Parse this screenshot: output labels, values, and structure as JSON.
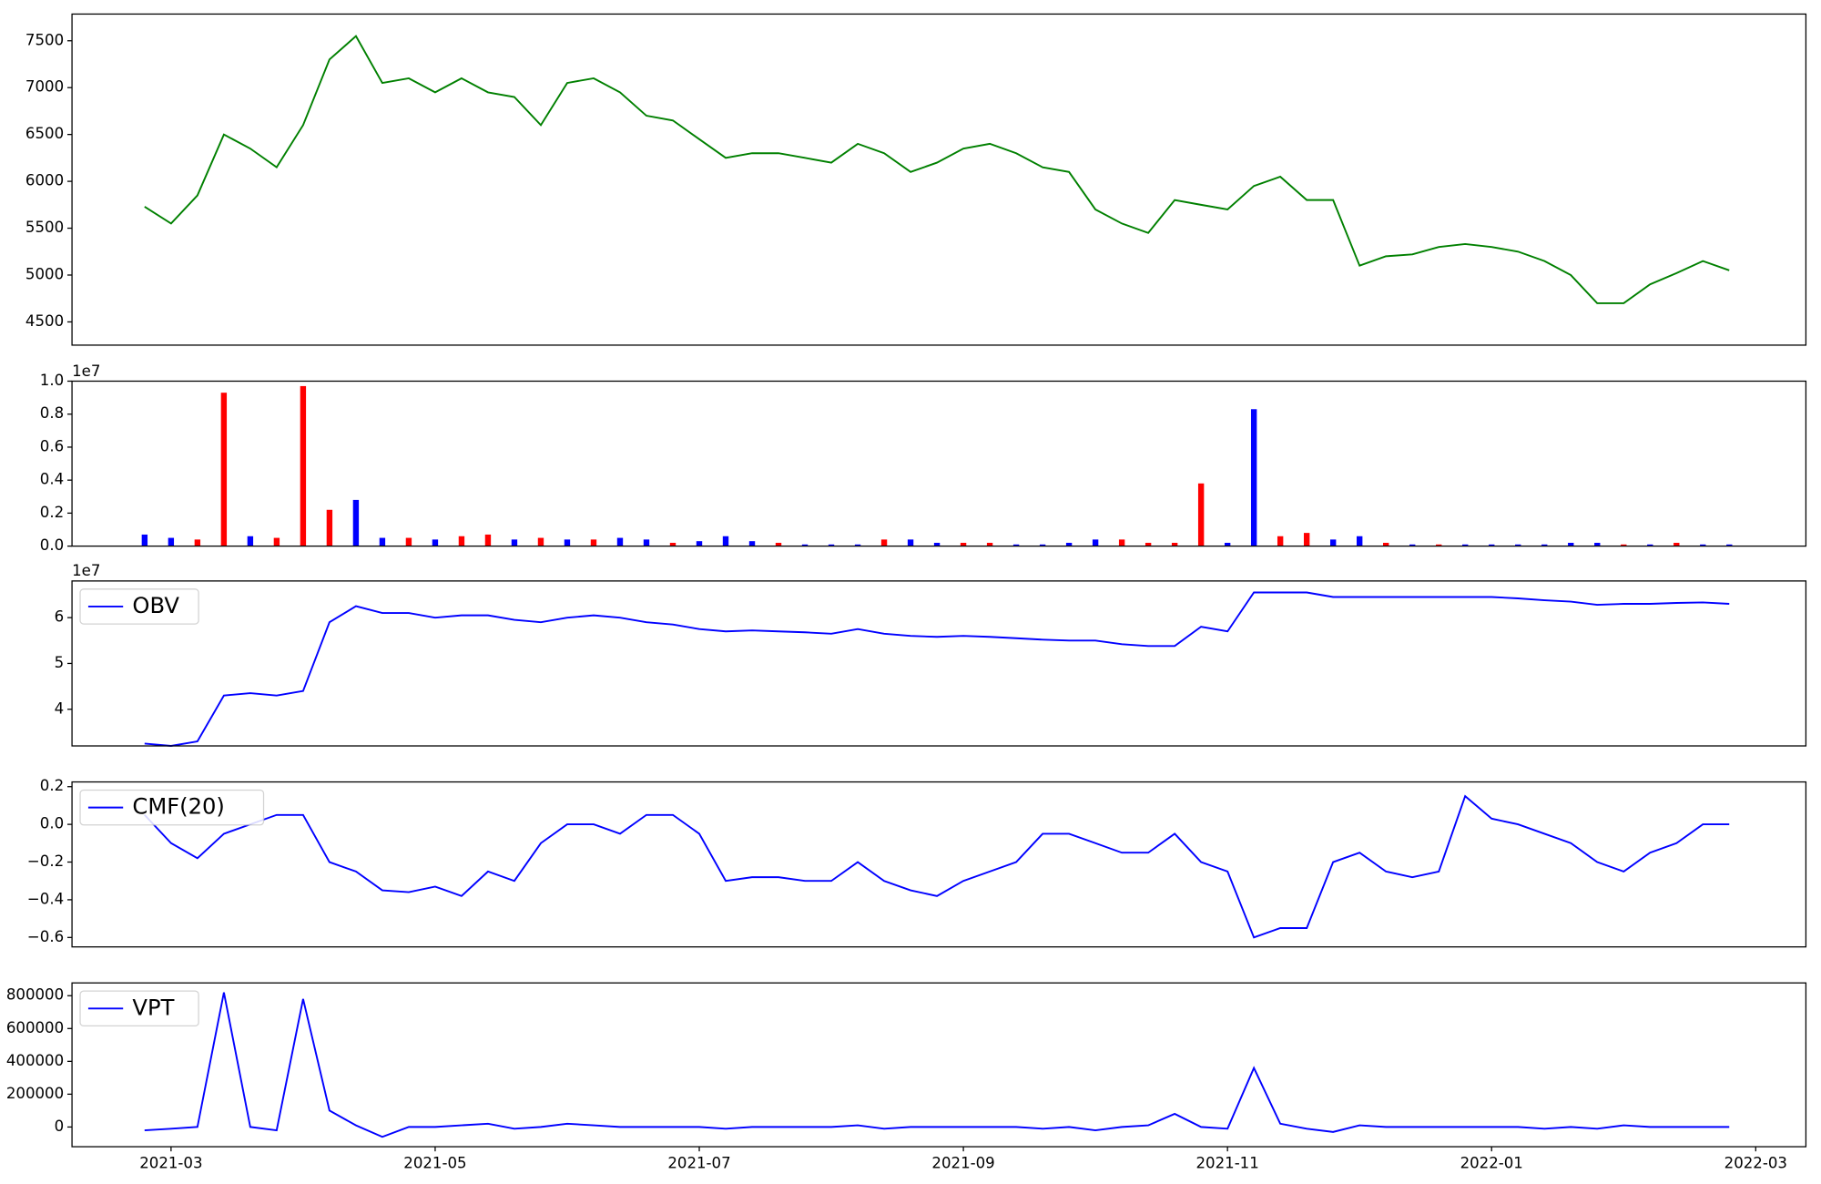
{
  "chart_data": [
    {
      "type": "line",
      "x": [
        2.8,
        3,
        3.2,
        3.4,
        3.6,
        3.8,
        4,
        4.2,
        4.4,
        4.6,
        4.8,
        5,
        5.2,
        5.4,
        5.6,
        5.8,
        6,
        6.2,
        6.4,
        6.6,
        6.8,
        7,
        7.2,
        7.4,
        7.6,
        7.8,
        8,
        8.2,
        8.4,
        8.6,
        8.8,
        9,
        9.2,
        9.4,
        9.6,
        9.8,
        10,
        10.2,
        10.4,
        10.6,
        10.8,
        11,
        11.2,
        11.4,
        11.6,
        11.8,
        12,
        12.2,
        12.4,
        12.6,
        12.8,
        13,
        13.2,
        13.4,
        13.6,
        13.8,
        14,
        14.2,
        14.4,
        14.6,
        14.8
      ],
      "xlim": [
        2.25,
        15.38
      ],
      "ylim": [
        4252,
        7785
      ],
      "yticks": [
        4500,
        5000,
        5500,
        6000,
        6500,
        7000,
        7500
      ],
      "series": [
        {
          "color": "green",
          "values": [
            5730,
            5550,
            5850,
            6500,
            6350,
            6150,
            6600,
            7300,
            7550,
            7050,
            7100,
            6950,
            7100,
            6950,
            6900,
            6600,
            7050,
            7100,
            6950,
            6700,
            6650,
            6450,
            6250,
            6300,
            6300,
            6250,
            6200,
            6400,
            6300,
            6100,
            6200,
            6350,
            6400,
            6300,
            6150,
            6100,
            5700,
            5550,
            5450,
            5800,
            5750,
            5700,
            5950,
            6050,
            5800,
            5800,
            5100,
            5200,
            5220,
            5300,
            5330,
            5300,
            5250,
            5150,
            5000,
            4700,
            4700,
            4900,
            5020,
            5150,
            5050
          ]
        }
      ]
    },
    {
      "type": "bar",
      "x": [
        2.8,
        3,
        3.2,
        3.4,
        3.6,
        3.8,
        4,
        4.2,
        4.4,
        4.6,
        4.8,
        5,
        5.2,
        5.4,
        5.6,
        5.8,
        6,
        6.2,
        6.4,
        6.6,
        6.8,
        7,
        7.2,
        7.4,
        7.6,
        7.8,
        8,
        8.2,
        8.4,
        8.6,
        8.8,
        9,
        9.2,
        9.4,
        9.6,
        9.8,
        10,
        10.2,
        10.4,
        10.6,
        10.8,
        11,
        11.2,
        11.4,
        11.6,
        11.8,
        12,
        12.2,
        12.4,
        12.6,
        12.8,
        13,
        13.2,
        13.4,
        13.6,
        13.8,
        14,
        14.2,
        14.4,
        14.6,
        14.8
      ],
      "xlim": [
        2.25,
        15.38
      ],
      "ylim": [
        0,
        1.0
      ],
      "offset_text": "1e7",
      "yticks": [
        {
          "value": 0,
          "label": "0.0"
        },
        0.2,
        0.4,
        0.6,
        0.8,
        {
          "value": 1,
          "label": "1.0"
        }
      ],
      "values": [
        0.07,
        0.05,
        0.04,
        0.93,
        0.06,
        0.05,
        0.97,
        0.22,
        0.28,
        0.05,
        0.05,
        0.04,
        0.06,
        0.07,
        0.04,
        0.05,
        0.04,
        0.04,
        0.05,
        0.04,
        0.02,
        0.03,
        0.06,
        0.03,
        0.02,
        0.01,
        0.01,
        0.01,
        0.04,
        0.04,
        0.02,
        0.02,
        0.02,
        0.01,
        0.01,
        0.02,
        0.04,
        0.04,
        0.02,
        0.02,
        0.38,
        0.02,
        0.83,
        0.06,
        0.08,
        0.04,
        0.06,
        0.02,
        0.01,
        0.01,
        0.01,
        0.01,
        0.01,
        0.01,
        0.02,
        0.02,
        0.01,
        0.01,
        0.02,
        0.01,
        0.01
      ],
      "colors": [
        "blue",
        "blue",
        "red",
        "red",
        "blue",
        "red",
        "red",
        "red",
        "blue",
        "blue",
        "red",
        "blue",
        "red",
        "red",
        "blue",
        "red",
        "blue",
        "red",
        "blue",
        "blue",
        "red",
        "blue",
        "blue",
        "blue",
        "red",
        "blue",
        "blue",
        "blue",
        "red",
        "blue",
        "blue",
        "red",
        "red",
        "blue",
        "blue",
        "blue",
        "blue",
        "red",
        "red",
        "red",
        "red",
        "blue",
        "blue",
        "red",
        "red",
        "blue",
        "blue",
        "red",
        "blue",
        "red",
        "blue",
        "blue",
        "blue",
        "blue",
        "blue",
        "blue",
        "red",
        "blue",
        "red",
        "blue",
        "blue"
      ]
    },
    {
      "type": "line",
      "x": [
        2.8,
        3,
        3.2,
        3.4,
        3.6,
        3.8,
        4,
        4.2,
        4.4,
        4.6,
        4.8,
        5,
        5.2,
        5.4,
        5.6,
        5.8,
        6,
        6.2,
        6.4,
        6.6,
        6.8,
        7,
        7.2,
        7.4,
        7.6,
        7.8,
        8,
        8.2,
        8.4,
        8.6,
        8.8,
        9,
        9.2,
        9.4,
        9.6,
        9.8,
        10,
        10.2,
        10.4,
        10.6,
        10.8,
        11,
        11.2,
        11.4,
        11.6,
        11.8,
        12,
        12.2,
        12.4,
        12.6,
        12.8,
        13,
        13.2,
        13.4,
        13.6,
        13.8,
        14,
        14.2,
        14.4,
        14.6,
        14.8
      ],
      "xlim": [
        2.25,
        15.38
      ],
      "ylim": [
        3.2,
        6.8
      ],
      "offset_text": "1e7",
      "yticks": [
        4,
        5,
        6
      ],
      "series": [
        {
          "name": "OBV",
          "color": "blue",
          "values": [
            3.25,
            3.2,
            3.3,
            4.3,
            4.35,
            4.3,
            4.4,
            5.9,
            6.25,
            6.1,
            6.1,
            6.0,
            6.05,
            6.05,
            5.95,
            5.9,
            6.0,
            6.05,
            6.0,
            5.9,
            5.85,
            5.75,
            5.7,
            5.72,
            5.7,
            5.68,
            5.65,
            5.75,
            5.65,
            5.6,
            5.58,
            5.6,
            5.58,
            5.55,
            5.52,
            5.5,
            5.5,
            5.42,
            5.38,
            5.38,
            5.8,
            5.7,
            6.55,
            6.55,
            6.55,
            6.45,
            6.45,
            6.45,
            6.45,
            6.45,
            6.45,
            6.45,
            6.42,
            6.38,
            6.35,
            6.28,
            6.3,
            6.3,
            6.32,
            6.33,
            6.3
          ]
        }
      ]
    },
    {
      "type": "line",
      "x": [
        2.8,
        3,
        3.2,
        3.4,
        3.6,
        3.8,
        4,
        4.2,
        4.4,
        4.6,
        4.8,
        5,
        5.2,
        5.4,
        5.6,
        5.8,
        6,
        6.2,
        6.4,
        6.6,
        6.8,
        7,
        7.2,
        7.4,
        7.6,
        7.8,
        8,
        8.2,
        8.4,
        8.6,
        8.8,
        9,
        9.2,
        9.4,
        9.6,
        9.8,
        10,
        10.2,
        10.4,
        10.6,
        10.8,
        11,
        11.2,
        11.4,
        11.6,
        11.8,
        12,
        12.2,
        12.4,
        12.6,
        12.8,
        13,
        13.2,
        13.4,
        13.6,
        13.8,
        14,
        14.2,
        14.4,
        14.6,
        14.8
      ],
      "xlim": [
        2.25,
        15.38
      ],
      "ylim": [
        -0.65,
        0.225
      ],
      "yticks": [
        {
          "value": -0.6,
          "label": "−0.6"
        },
        {
          "value": -0.4,
          "label": "−0.4"
        },
        {
          "value": -0.2,
          "label": "−0.2"
        },
        {
          "value": 0,
          "label": "0.0"
        },
        0.2
      ],
      "series": [
        {
          "name": "CMF(20)",
          "color": "blue",
          "values": [
            0.05,
            -0.1,
            -0.18,
            -0.05,
            0.0,
            0.05,
            0.05,
            -0.2,
            -0.25,
            -0.35,
            -0.36,
            -0.33,
            -0.38,
            -0.25,
            -0.3,
            -0.1,
            0.0,
            0.0,
            -0.05,
            0.05,
            0.05,
            -0.05,
            -0.3,
            -0.28,
            -0.28,
            -0.3,
            -0.3,
            -0.2,
            -0.3,
            -0.35,
            -0.38,
            -0.3,
            -0.25,
            -0.2,
            -0.05,
            -0.05,
            -0.1,
            -0.15,
            -0.15,
            -0.05,
            -0.2,
            -0.25,
            -0.6,
            -0.55,
            -0.55,
            -0.2,
            -0.15,
            -0.25,
            -0.28,
            -0.25,
            0.15,
            0.03,
            0.0,
            -0.05,
            -0.1,
            -0.2,
            -0.25,
            -0.15,
            -0.1,
            0.0,
            0.0
          ]
        }
      ]
    },
    {
      "type": "line",
      "x": [
        2.8,
        3,
        3.2,
        3.4,
        3.6,
        3.8,
        4,
        4.2,
        4.4,
        4.6,
        4.8,
        5,
        5.2,
        5.4,
        5.6,
        5.8,
        6,
        6.2,
        6.4,
        6.6,
        6.8,
        7,
        7.2,
        7.4,
        7.6,
        7.8,
        8,
        8.2,
        8.4,
        8.6,
        8.8,
        9,
        9.2,
        9.4,
        9.6,
        9.8,
        10,
        10.2,
        10.4,
        10.6,
        10.8,
        11,
        11.2,
        11.4,
        11.6,
        11.8,
        12,
        12.2,
        12.4,
        12.6,
        12.8,
        13,
        13.2,
        13.4,
        13.6,
        13.8,
        14,
        14.2,
        14.4,
        14.6,
        14.8
      ],
      "xlim": [
        2.25,
        15.38
      ],
      "ylim": [
        -120000,
        877900
      ],
      "yticks": [
        0,
        200000,
        400000,
        600000,
        800000
      ],
      "xticks": [
        {
          "value": 3,
          "label": "2021-03"
        },
        {
          "value": 5,
          "label": "2021-05"
        },
        {
          "value": 7,
          "label": "2021-07"
        },
        {
          "value": 9,
          "label": "2021-09"
        },
        {
          "value": 11,
          "label": "2021-11"
        },
        {
          "value": 13,
          "label": "2022-01"
        },
        {
          "value": 15,
          "label": "2022-03"
        }
      ],
      "series": [
        {
          "name": "VPT",
          "color": "blue",
          "values": [
            -20000,
            -10000,
            0,
            820000,
            0,
            -20000,
            780000,
            100000,
            10000,
            -60000,
            0,
            0,
            10000,
            20000,
            -10000,
            0,
            20000,
            10000,
            0,
            0,
            0,
            0,
            -10000,
            0,
            0,
            0,
            0,
            10000,
            -10000,
            0,
            0,
            0,
            0,
            0,
            -10000,
            0,
            -20000,
            0,
            10000,
            80000,
            0,
            -10000,
            360000,
            20000,
            -10000,
            -30000,
            10000,
            0,
            0,
            0,
            0,
            0,
            0,
            -10000,
            0,
            -10000,
            10000,
            0,
            0,
            0,
            0
          ]
        }
      ]
    }
  ]
}
